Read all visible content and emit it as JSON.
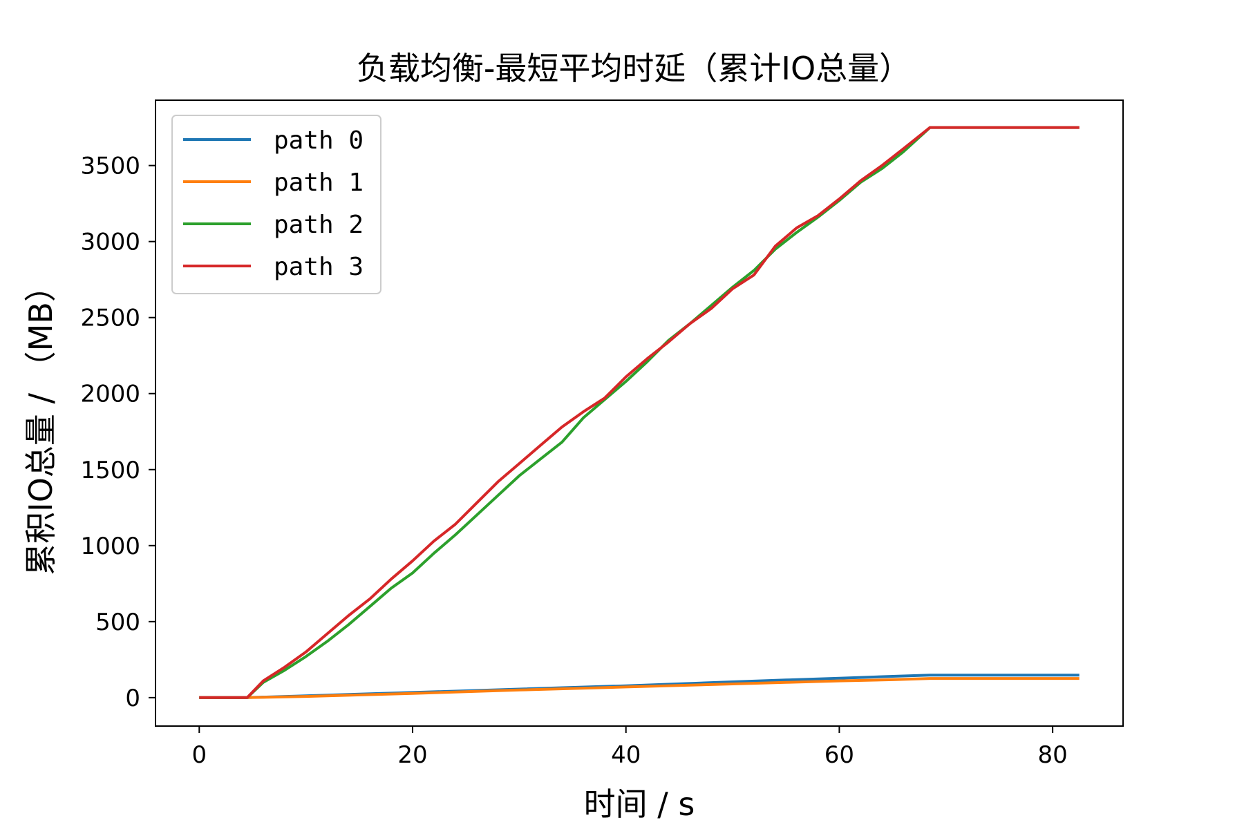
{
  "chart_data": {
    "type": "line",
    "title": "负载均衡-最短平均时延（累计IO总量）",
    "xlabel": "时间 / s",
    "ylabel": "累积IO总量 / （MB）",
    "xlim": [
      -4.1,
      86.6
    ],
    "ylim": [
      -187,
      3930
    ],
    "xticks": [
      0,
      20,
      40,
      60,
      80
    ],
    "yticks": [
      0,
      500,
      1000,
      1500,
      2000,
      2500,
      3000,
      3500
    ],
    "grid": false,
    "legend": "top-left",
    "series": [
      {
        "name": "path 0",
        "color": "#1f77b4",
        "x": [
          0,
          4.5,
          10,
          20,
          30,
          40,
          50,
          55,
          60,
          65,
          68.5,
          82.5
        ],
        "y": [
          0,
          0,
          12,
          34,
          56,
          78,
          104,
          116,
          128,
          140,
          148,
          148
        ]
      },
      {
        "name": "path 1",
        "color": "#ff7f0e",
        "x": [
          0,
          4.5,
          10,
          20,
          30,
          40,
          50,
          55,
          60,
          65,
          68.5,
          82.5
        ],
        "y": [
          0,
          0,
          8,
          28,
          50,
          70,
          90,
          100,
          110,
          118,
          126,
          126
        ]
      },
      {
        "name": "path 2",
        "color": "#2ca02c",
        "x": [
          0,
          4.5,
          6,
          8,
          10,
          12,
          14,
          16,
          18,
          20,
          22,
          24,
          26,
          28,
          30,
          32,
          34,
          36,
          38,
          40,
          42,
          44,
          46,
          48,
          50,
          52,
          54,
          56,
          58,
          60,
          62,
          64,
          66,
          68.5,
          82.5
        ],
        "y": [
          0,
          0,
          100,
          180,
          270,
          370,
          480,
          600,
          720,
          820,
          950,
          1070,
          1200,
          1330,
          1460,
          1570,
          1680,
          1840,
          1960,
          2080,
          2210,
          2350,
          2460,
          2580,
          2700,
          2810,
          2950,
          3060,
          3160,
          3270,
          3390,
          3480,
          3590,
          3750,
          3750
        ]
      },
      {
        "name": "path 3",
        "color": "#d62728",
        "x": [
          0,
          4.5,
          6,
          8,
          10,
          12,
          14,
          16,
          18,
          20,
          22,
          24,
          26,
          28,
          30,
          32,
          34,
          36,
          38,
          40,
          42,
          44,
          46,
          48,
          50,
          52,
          54,
          56,
          58,
          60,
          62,
          64,
          66,
          68.5,
          82.5
        ],
        "y": [
          0,
          0,
          110,
          200,
          300,
          420,
          540,
          650,
          780,
          900,
          1030,
          1140,
          1280,
          1420,
          1540,
          1660,
          1780,
          1880,
          1970,
          2110,
          2230,
          2340,
          2460,
          2560,
          2690,
          2780,
          2970,
          3090,
          3170,
          3280,
          3400,
          3500,
          3610,
          3750,
          3750
        ]
      }
    ]
  }
}
